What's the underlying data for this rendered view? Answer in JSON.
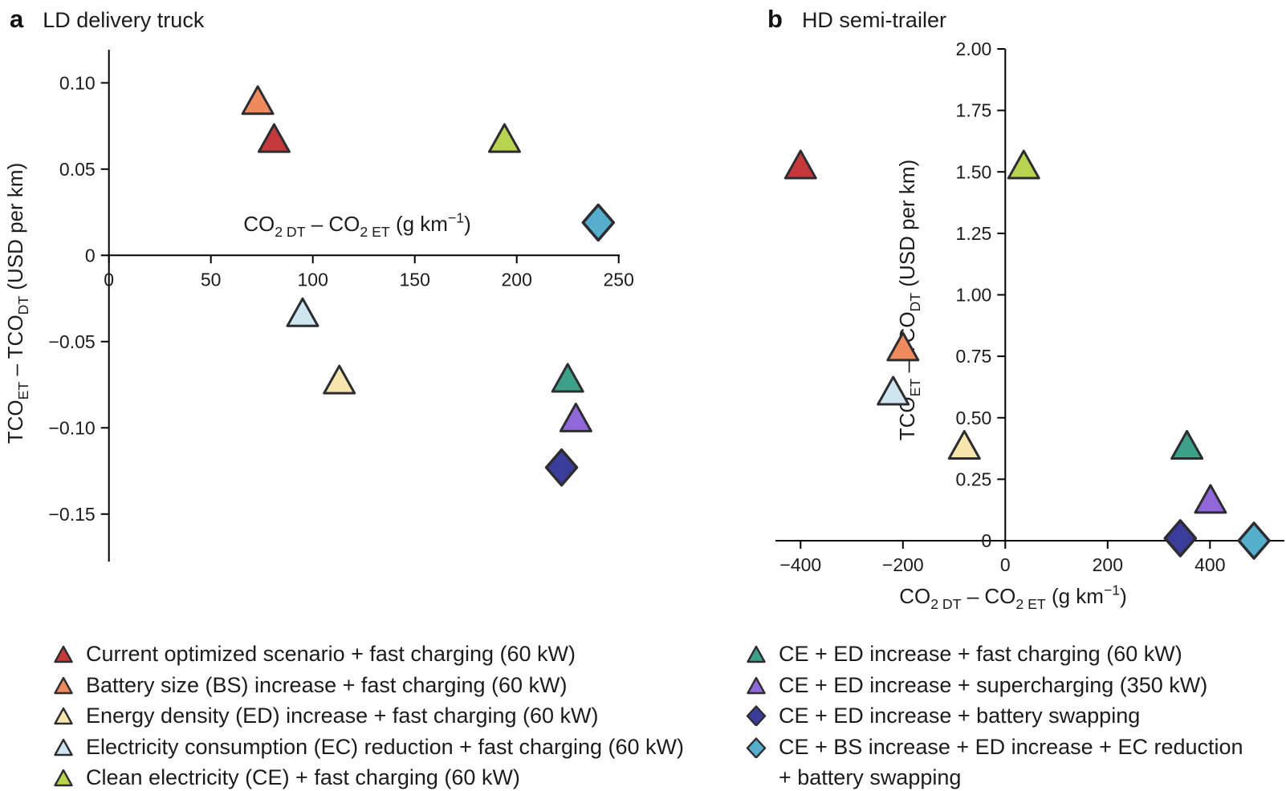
{
  "panels": {
    "a": {
      "letter": "a",
      "title": "LD delivery truck"
    },
    "b": {
      "letter": "b",
      "title": "HD semi-trailer"
    }
  },
  "colors": {
    "red": "#c5393b",
    "orange": "#ef8a5c",
    "pale_yellow": "#f7e6ae",
    "light_blue": "#cfe6f1",
    "yellow_green": "#b6d44d",
    "teal": "#3da189",
    "purple": "#9168d9",
    "navy": "#3b3d9b",
    "cyan": "#55aecb",
    "marker_outline": "#2d2d31",
    "axis": "#000000",
    "text": "#1c1c1c"
  },
  "axis_titles": {
    "x_plain": "CO2 DT – CO2 ET (g km−1)",
    "y_plain": "TCOET – TCODT (USD per km)",
    "x_parts": [
      {
        "t": "CO"
      },
      {
        "t": "2 DT",
        "style": "sub"
      },
      {
        "t": " – CO"
      },
      {
        "t": "2 ET",
        "style": "sub"
      },
      {
        "t": " (g km"
      },
      {
        "t": "−1",
        "style": "sup"
      },
      {
        "t": ")"
      }
    ],
    "y_parts": [
      {
        "t": "TCO"
      },
      {
        "t": "ET",
        "style": "sub"
      },
      {
        "t": " – TCO"
      },
      {
        "t": "DT",
        "style": "sub"
      },
      {
        "t": " (USD per km)"
      }
    ]
  },
  "legend": {
    "left": [
      {
        "marker": "triangle",
        "color": "red",
        "label": "Current optimized scenario + fast charging (60 kW)"
      },
      {
        "marker": "triangle",
        "color": "orange",
        "label": "Battery size (BS) increase + fast charging (60 kW)"
      },
      {
        "marker": "triangle",
        "color": "pale_yellow",
        "label": "Energy density (ED) increase + fast charging (60 kW)"
      },
      {
        "marker": "triangle",
        "color": "light_blue",
        "label": "Electricity consumption (EC) reduction + fast charging (60 kW)"
      },
      {
        "marker": "triangle",
        "color": "yellow_green",
        "label": "Clean electricity (CE) + fast charging (60 kW)"
      }
    ],
    "right": [
      {
        "marker": "triangle",
        "color": "teal",
        "label": "CE + ED increase + fast charging (60 kW)"
      },
      {
        "marker": "triangle",
        "color": "purple",
        "label": "CE + ED increase + supercharging (350 kW)"
      },
      {
        "marker": "diamond",
        "color": "navy",
        "label": "CE + ED increase + battery swapping"
      },
      {
        "marker": "diamond",
        "color": "cyan",
        "label": "CE + BS increase + ED increase + EC reduction",
        "label2": "+ battery swapping"
      }
    ]
  },
  "chart_data": [
    {
      "id": "a",
      "type": "scatter",
      "title": "LD delivery truck",
      "xlabel": "CO2 DT – CO2 ET (g km−1)",
      "ylabel": "TCOET – TCODT (USD per km)",
      "xlim": [
        0,
        252
      ],
      "ylim": [
        -0.18,
        0.12
      ],
      "grid": false,
      "x_ticks": [
        {
          "v": 0,
          "l": "0"
        },
        {
          "v": 50,
          "l": "50"
        },
        {
          "v": 100,
          "l": "100"
        },
        {
          "v": 150,
          "l": "150"
        },
        {
          "v": 200,
          "l": "200"
        },
        {
          "v": 250,
          "l": "250"
        }
      ],
      "y_ticks": [
        {
          "v": 0.1,
          "l": "0.10"
        },
        {
          "v": 0.05,
          "l": "0.05"
        },
        {
          "v": 0,
          "l": "0"
        },
        {
          "v": -0.05,
          "l": "−0.05"
        },
        {
          "v": -0.1,
          "l": "−0.10"
        },
        {
          "v": -0.15,
          "l": "−0.15"
        }
      ],
      "points": [
        {
          "id": "current-optimized",
          "scenario": "Current optimized scenario + fast charging (60 kW)",
          "marker": "triangle",
          "color": "red",
          "x": 81,
          "y": 0.068
        },
        {
          "id": "bs-increase",
          "scenario": "Battery size (BS) increase + fast charging (60 kW)",
          "marker": "triangle",
          "color": "orange",
          "x": 73,
          "y": 0.09
        },
        {
          "id": "ed-increase",
          "scenario": "Energy density (ED) increase + fast charging (60 kW)",
          "marker": "triangle",
          "color": "pale_yellow",
          "x": 113,
          "y": -0.072
        },
        {
          "id": "ec-reduction",
          "scenario": "Electricity consumption (EC) reduction + fast charging (60 kW)",
          "marker": "triangle",
          "color": "light_blue",
          "x": 95,
          "y": -0.033
        },
        {
          "id": "clean-electricity",
          "scenario": "Clean electricity (CE) + fast charging (60 kW)",
          "marker": "triangle",
          "color": "yellow_green",
          "x": 194,
          "y": 0.068
        },
        {
          "id": "ce-ed-fast",
          "scenario": "CE + ED increase + fast charging (60 kW)",
          "marker": "triangle",
          "color": "teal",
          "x": 225,
          "y": -0.071
        },
        {
          "id": "ce-ed-super",
          "scenario": "CE + ED increase + supercharging (350 kW)",
          "marker": "triangle",
          "color": "purple",
          "x": 229,
          "y": -0.094
        },
        {
          "id": "ce-ed-swap",
          "scenario": "CE + ED increase + battery swapping",
          "marker": "diamond",
          "color": "navy",
          "x": 222,
          "y": -0.123
        },
        {
          "id": "ce-bs-ed-ec-swap",
          "scenario": "CE + BS increase + ED increase + EC reduction + battery swapping",
          "marker": "diamond",
          "color": "cyan",
          "x": 240,
          "y": 0.019
        }
      ]
    },
    {
      "id": "b",
      "type": "scatter",
      "title": "HD semi-trailer",
      "xlabel": "CO2 DT – CO2 ET (g km−1)",
      "ylabel": "TCOET – TCODT (USD per km)",
      "xlim": [
        -450,
        545
      ],
      "ylim": [
        0,
        2.0
      ],
      "grid": false,
      "x_ticks": [
        {
          "v": -400,
          "l": "−400"
        },
        {
          "v": -200,
          "l": "−200"
        },
        {
          "v": 0,
          "l": "0"
        },
        {
          "v": 200,
          "l": "200"
        },
        {
          "v": 400,
          "l": "400"
        }
      ],
      "y_ticks": [
        {
          "v": 2.0,
          "l": "2.00"
        },
        {
          "v": 1.75,
          "l": "1.75"
        },
        {
          "v": 1.5,
          "l": "1.50"
        },
        {
          "v": 1.25,
          "l": "1.25"
        },
        {
          "v": 1.0,
          "l": "1.00"
        },
        {
          "v": 0.75,
          "l": "0.75"
        },
        {
          "v": 0.5,
          "l": "0.50"
        },
        {
          "v": 0.25,
          "l": "0.25"
        },
        {
          "v": 0,
          "l": "0"
        }
      ],
      "points": [
        {
          "id": "current-optimized",
          "scenario": "Current optimized scenario + fast charging (60 kW)",
          "marker": "triangle",
          "color": "red",
          "x": -400,
          "y": 1.53
        },
        {
          "id": "bs-increase",
          "scenario": "Battery size (BS) increase + fast charging (60 kW)",
          "marker": "triangle",
          "color": "orange",
          "x": -200,
          "y": 0.79
        },
        {
          "id": "ed-increase",
          "scenario": "Energy density (ED) increase + fast charging (60 kW)",
          "marker": "triangle",
          "color": "pale_yellow",
          "x": -80,
          "y": 0.39
        },
        {
          "id": "ec-reduction",
          "scenario": "Electricity consumption (EC) reduction + fast charging (60 kW)",
          "marker": "triangle",
          "color": "light_blue",
          "x": -219,
          "y": 0.61
        },
        {
          "id": "clean-electricity",
          "scenario": "Clean electricity (CE) + fast charging (60 kW)",
          "marker": "triangle",
          "color": "yellow_green",
          "x": 36,
          "y": 1.53
        },
        {
          "id": "ce-ed-fast",
          "scenario": "CE + ED increase + fast charging (60 kW)",
          "marker": "triangle",
          "color": "teal",
          "x": 355,
          "y": 0.39
        },
        {
          "id": "ce-ed-super",
          "scenario": "CE + ED increase + supercharging (350 kW)",
          "marker": "triangle",
          "color": "purple",
          "x": 401,
          "y": 0.17
        },
        {
          "id": "ce-ed-swap",
          "scenario": "CE + ED increase + battery swapping",
          "marker": "diamond",
          "color": "navy",
          "x": 342,
          "y": 0.01
        },
        {
          "id": "ce-bs-ed-ec-swap",
          "scenario": "CE + BS increase + ED increase + EC reduction + battery swapping",
          "marker": "diamond",
          "color": "cyan",
          "x": 486,
          "y": 0.0
        }
      ]
    }
  ]
}
